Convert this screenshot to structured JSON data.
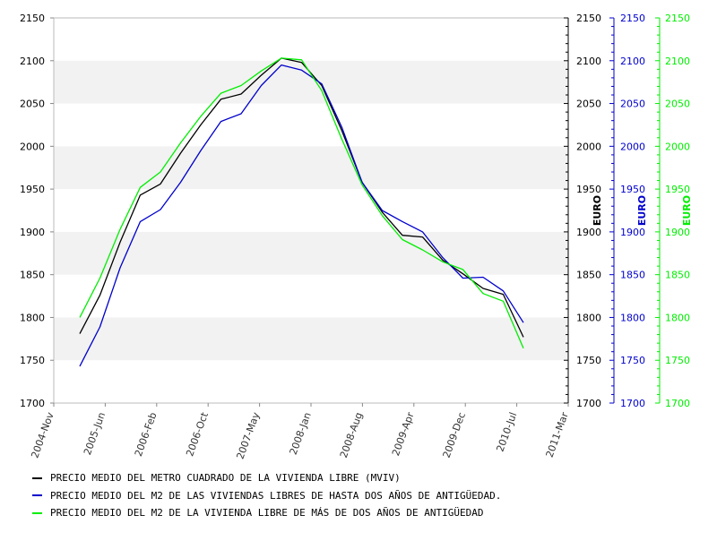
{
  "chart_data": {
    "type": "line",
    "title": "",
    "xlabel": "",
    "ylim": [
      1700,
      2150
    ],
    "yticks": [
      1700,
      1750,
      1800,
      1850,
      1900,
      1950,
      2000,
      2050,
      2100,
      2150
    ],
    "grid": "horizontal alternating bands",
    "legend_position": "bottom",
    "x_tick_labels": [
      "2004-Nov",
      "2005-Jun",
      "2006-Feb",
      "2006-Oct",
      "2007-May",
      "2008-Jan",
      "2008-Aug",
      "2009-Apr",
      "2009-Dec",
      "2010-Jul",
      "2011-Mar"
    ],
    "x": [
      "2005-Q1",
      "2005-Q2",
      "2005-Q3",
      "2005-Q4",
      "2006-Q1",
      "2006-Q2",
      "2006-Q3",
      "2006-Q4",
      "2007-Q1",
      "2007-Q2",
      "2007-Q3",
      "2007-Q4",
      "2008-Q1",
      "2008-Q2",
      "2008-Q3",
      "2008-Q4",
      "2009-Q1",
      "2009-Q2",
      "2009-Q3",
      "2009-Q4",
      "2010-Q1",
      "2010-Q2",
      "2010-Q3"
    ],
    "series": [
      {
        "name": "PRECIO MEDIO DEL METRO CUADRADO DE LA VIVIENDA LIBRE (MVIV)",
        "color": "#000000",
        "values": [
          1781,
          1826,
          1888,
          1943,
          1956,
          1992,
          2025,
          2055,
          2061,
          2083,
          2103,
          2098,
          2071,
          2018,
          1958,
          1923,
          1896,
          1894,
          1867,
          1851,
          1834,
          1827,
          1777
        ]
      },
      {
        "name": "PRECIO MEDIO DEL M2 DE LAS VIVIENDAS LIBRES DE HASTA DOS AÑOS DE ANTIGÜEDAD.",
        "color": "#0000cc",
        "values": [
          1743,
          1789,
          1858,
          1912,
          1926,
          1958,
          1995,
          2029,
          2038,
          2071,
          2095,
          2089,
          2073,
          2022,
          1958,
          1925,
          1912,
          1900,
          1870,
          1846,
          1847,
          1831,
          1794
        ]
      },
      {
        "name": "PRECIO MEDIO DEL M2 DE LA VIVIENDA LIBRE DE MÁS DE DOS AÑOS DE ANTIGÜEDAD",
        "color": "#00ee00",
        "values": [
          1800,
          1846,
          1903,
          1952,
          1970,
          2004,
          2035,
          2062,
          2071,
          2088,
          2103,
          2101,
          2065,
          2008,
          1955,
          1919,
          1891,
          1879,
          1865,
          1856,
          1828,
          1819,
          1764
        ]
      }
    ],
    "y_axes": [
      {
        "label": "EURO",
        "color": "#000000"
      },
      {
        "label": "EURO",
        "color": "#0000cc"
      },
      {
        "label": "EURO",
        "color": "#00ee00"
      }
    ]
  }
}
